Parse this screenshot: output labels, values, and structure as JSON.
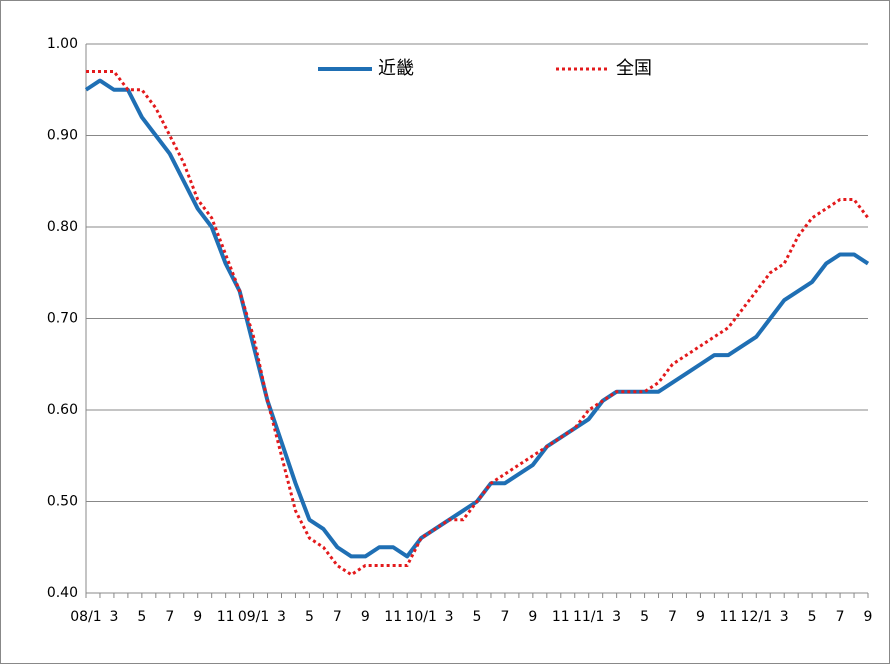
{
  "chart_data": {
    "type": "line",
    "categories": [
      "08/1",
      null,
      "3",
      null,
      "5",
      null,
      "7",
      null,
      "9",
      null,
      "11",
      null,
      "09/1",
      null,
      "3",
      null,
      "5",
      null,
      "7",
      null,
      "9",
      null,
      "11",
      null,
      "10/1",
      null,
      "3",
      null,
      "5",
      null,
      "7",
      null,
      "9",
      null,
      "11",
      null,
      "11/1",
      null,
      "3",
      null,
      "5",
      null,
      "7",
      null,
      "9",
      null,
      "11",
      null,
      "12/1",
      null,
      "3",
      null,
      "5",
      null,
      "7",
      null,
      "9"
    ],
    "series": [
      {
        "name": "近畿",
        "color": "#1f6fb4",
        "style": "solid",
        "values": [
          0.95,
          0.96,
          0.95,
          0.95,
          0.92,
          0.9,
          0.88,
          0.85,
          0.82,
          0.8,
          0.76,
          0.73,
          0.67,
          0.61,
          0.565,
          0.52,
          0.48,
          0.47,
          0.45,
          0.44,
          0.44,
          0.45,
          0.45,
          0.44,
          0.46,
          0.47,
          0.48,
          0.49,
          0.5,
          0.52,
          0.52,
          0.53,
          0.54,
          0.56,
          0.57,
          0.58,
          0.59,
          0.61,
          0.62,
          0.62,
          0.62,
          0.62,
          0.63,
          0.64,
          0.65,
          0.66,
          0.66,
          0.67,
          0.68,
          0.7,
          0.72,
          0.73,
          0.74,
          0.76,
          0.77,
          0.77,
          0.76
        ]
      },
      {
        "name": "全国",
        "color": "#e31a1c",
        "style": "dotted",
        "values": [
          0.97,
          0.97,
          0.97,
          0.95,
          0.95,
          0.93,
          0.9,
          0.87,
          0.83,
          0.81,
          0.77,
          0.73,
          0.68,
          0.61,
          0.55,
          0.49,
          0.46,
          0.45,
          0.43,
          0.42,
          0.43,
          0.43,
          0.43,
          0.43,
          0.46,
          0.47,
          0.48,
          0.48,
          0.5,
          0.52,
          0.53,
          0.54,
          0.55,
          0.56,
          0.57,
          0.58,
          0.6,
          0.61,
          0.62,
          0.62,
          0.62,
          0.63,
          0.65,
          0.66,
          0.67,
          0.68,
          0.69,
          0.71,
          0.73,
          0.75,
          0.76,
          0.79,
          0.81,
          0.82,
          0.83,
          0.83,
          0.81
        ]
      }
    ],
    "ylim": [
      0.4,
      1.0
    ],
    "yticks": [
      {
        "value": 0.4,
        "label": "0.40"
      },
      {
        "value": 0.5,
        "label": "0.50"
      },
      {
        "value": 0.6,
        "label": "0.60"
      },
      {
        "value": 0.7,
        "label": "0.70"
      },
      {
        "value": 0.8,
        "label": "0.80"
      },
      {
        "value": 0.9,
        "label": "0.90"
      },
      {
        "value": 1.0,
        "label": "1.00"
      }
    ],
    "grid": true,
    "legend": "top"
  }
}
